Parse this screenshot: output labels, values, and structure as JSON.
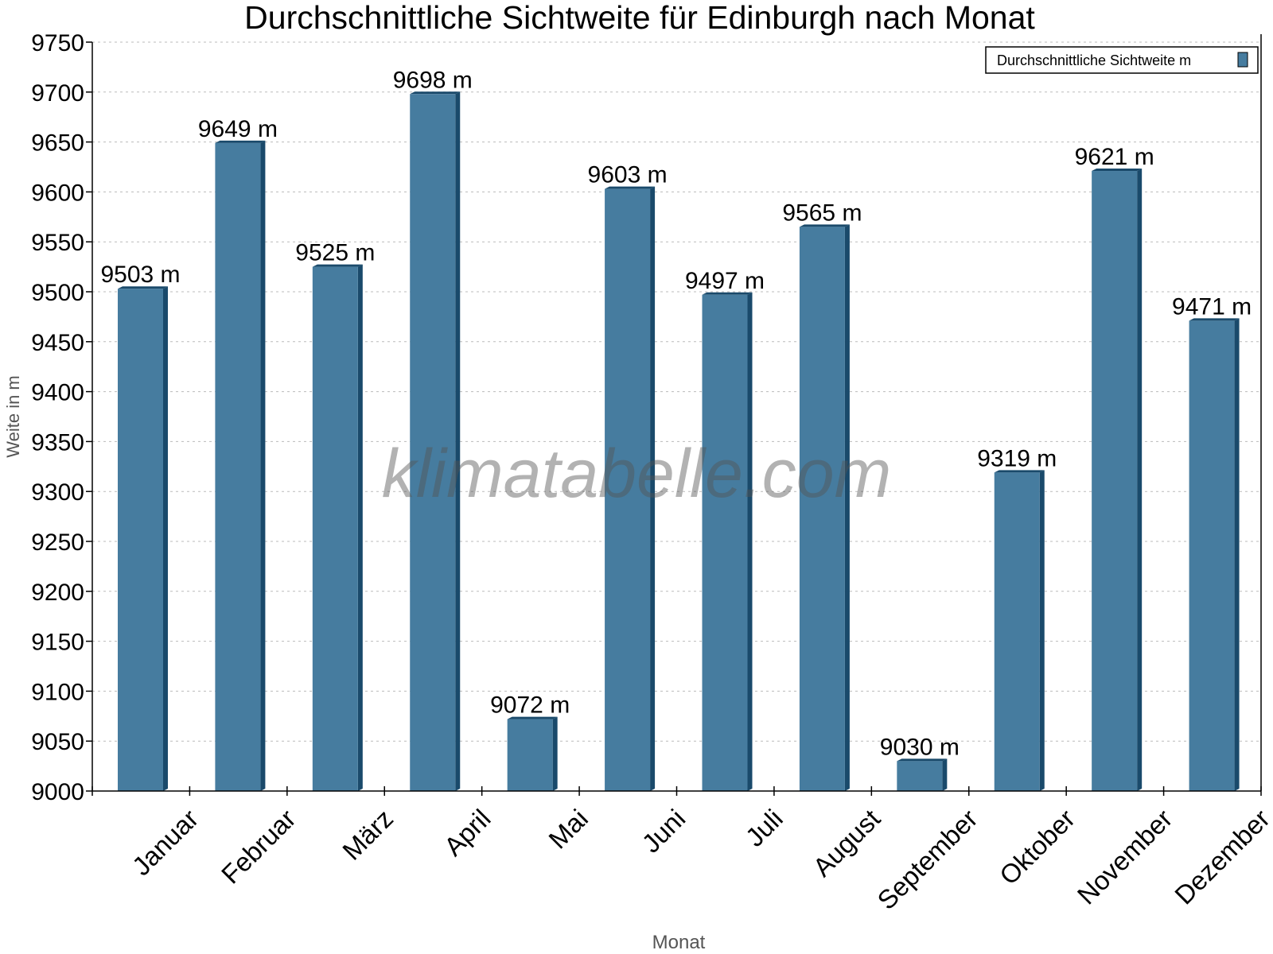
{
  "chart_data": {
    "type": "bar",
    "title": "Durchschnittliche Sichtweite für Edinburgh nach Monat",
    "xlabel": "Monat",
    "ylabel": "Weite in m",
    "categories": [
      "Januar",
      "Februar",
      "März",
      "April",
      "Mai",
      "Juni",
      "Juli",
      "August",
      "September",
      "Oktober",
      "November",
      "Dezember"
    ],
    "series": [
      {
        "name": "Durchschnittliche Sichtweite m",
        "values": [
          9503,
          9649,
          9525,
          9698,
          9072,
          9603,
          9497,
          9565,
          9030,
          9319,
          9621,
          9471
        ]
      }
    ],
    "value_suffix": " m",
    "ylim": [
      9000,
      9750
    ],
    "yticks": [
      9000,
      9050,
      9100,
      9150,
      9200,
      9250,
      9300,
      9350,
      9400,
      9450,
      9500,
      9550,
      9600,
      9650,
      9700,
      9750
    ],
    "grid": true,
    "legend_position": "top-right",
    "watermark": "klimatabelle.com",
    "colors": {
      "bar": "#467c9f",
      "bar_side": "#1a4a6b"
    }
  }
}
